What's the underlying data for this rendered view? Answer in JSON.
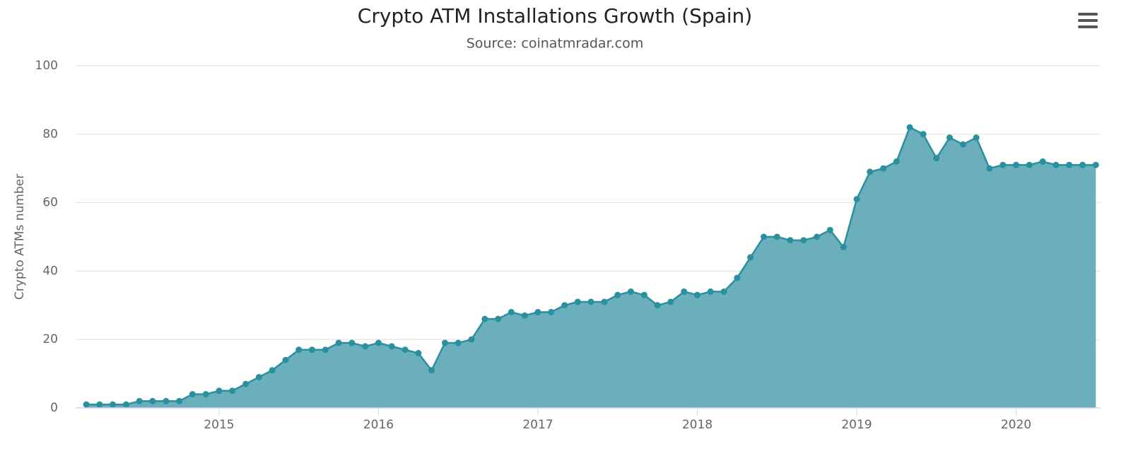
{
  "chart_data": {
    "type": "area",
    "title": "Crypto ATM Installations Growth (Spain)",
    "subtitle": "Source: coinatmradar.com",
    "y_label": "Crypto ATMs number",
    "color": "#2a8f9e",
    "fill_color": "#63aab8",
    "grid": true,
    "x": [
      2014.167,
      2014.25,
      2014.333,
      2014.417,
      2014.5,
      2014.583,
      2014.667,
      2014.75,
      2014.833,
      2014.917,
      2015,
      2015.083,
      2015.167,
      2015.25,
      2015.333,
      2015.417,
      2015.5,
      2015.583,
      2015.667,
      2015.75,
      2015.833,
      2015.917,
      2016,
      2016.083,
      2016.167,
      2016.25,
      2016.333,
      2016.417,
      2016.5,
      2016.583,
      2016.667,
      2016.75,
      2016.833,
      2016.917,
      2017,
      2017.083,
      2017.167,
      2017.25,
      2017.333,
      2017.417,
      2017.5,
      2017.583,
      2017.667,
      2017.75,
      2017.833,
      2017.917,
      2018,
      2018.083,
      2018.167,
      2018.25,
      2018.333,
      2018.417,
      2018.5,
      2018.583,
      2018.667,
      2018.75,
      2018.833,
      2018.917,
      2019,
      2019.083,
      2019.167,
      2019.25,
      2019.333,
      2019.417,
      2019.5,
      2019.583,
      2019.667,
      2019.75,
      2019.833,
      2019.917,
      2020,
      2020.083,
      2020.167,
      2020.25,
      2020.333,
      2020.417,
      2020.5
    ],
    "values": [
      1,
      1,
      1,
      1,
      2,
      2,
      2,
      2,
      4,
      4,
      5,
      5,
      7,
      9,
      11,
      14,
      17,
      17,
      17,
      19,
      19,
      18,
      19,
      18,
      17,
      16,
      11,
      19,
      19,
      20,
      26,
      26,
      28,
      27,
      28,
      28,
      30,
      31,
      31,
      31,
      33,
      34,
      33,
      30,
      31,
      34,
      33,
      34,
      34,
      38,
      44,
      50,
      50,
      49,
      49,
      50,
      52,
      47,
      61,
      69,
      70,
      72,
      82,
      80,
      73,
      79,
      77,
      79,
      70,
      71,
      71,
      71,
      72,
      71,
      71,
      71,
      71
    ],
    "xlim": [
      2014.1,
      2020.53
    ],
    "xticks": [
      2015,
      2016,
      2017,
      2018,
      2019,
      2020
    ],
    "ylim": [
      0,
      100
    ],
    "yticks": [
      0,
      20,
      40,
      60,
      80,
      100
    ]
  }
}
